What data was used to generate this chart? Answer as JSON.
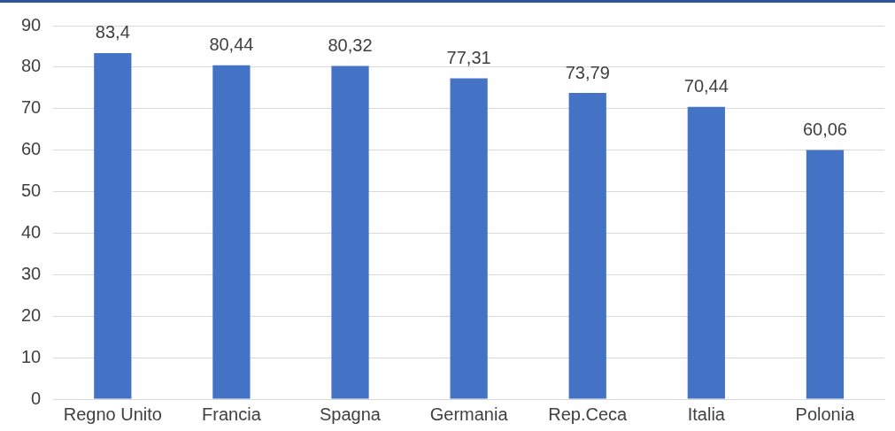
{
  "chart_data": {
    "type": "bar",
    "categories": [
      "Regno Unito",
      "Francia",
      "Spagna",
      "Germania",
      "Rep.Ceca",
      "Italia",
      "Polonia"
    ],
    "values": [
      83.4,
      80.44,
      80.32,
      77.31,
      73.79,
      70.44,
      60.06
    ],
    "value_labels": [
      "83,4",
      "80,44",
      "80,32",
      "77,31",
      "73,79",
      "70,44",
      "60,06"
    ],
    "color": "#4472c4",
    "ylim": [
      0,
      90
    ],
    "yticks": [
      0,
      10,
      20,
      30,
      40,
      50,
      60,
      70,
      80,
      90
    ],
    "grid": "y"
  }
}
